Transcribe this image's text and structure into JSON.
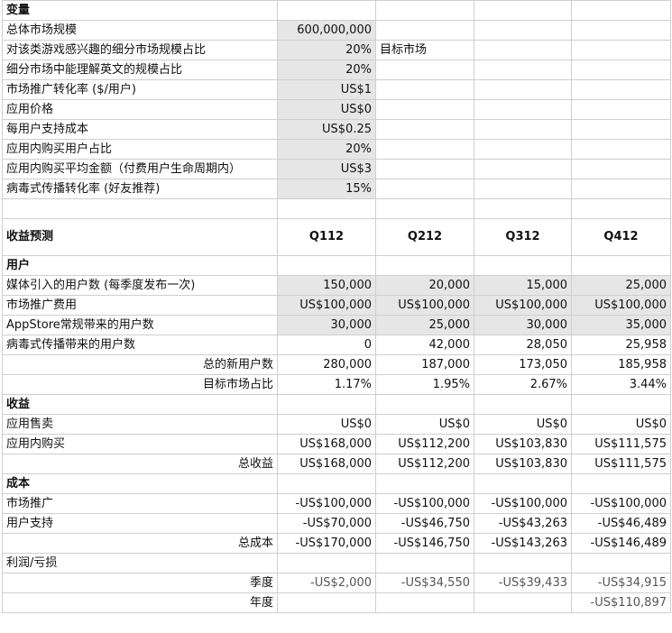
{
  "variables": {
    "title": "变量",
    "rows": [
      {
        "label": "总体市场规模",
        "value": "600,000,000",
        "note": ""
      },
      {
        "label": "对该类游戏感兴趣的细分市场规模占比",
        "value": "20%",
        "note": "目标市场"
      },
      {
        "label": "细分市场中能理解英文的规模占比",
        "value": "20%",
        "note": ""
      },
      {
        "label": "市场推广转化率 ($/用户)",
        "value": "US$1",
        "note": ""
      },
      {
        "label": "应用价格",
        "value": "US$0",
        "note": ""
      },
      {
        "label": "每用户支持成本",
        "value": "US$0.25",
        "note": ""
      },
      {
        "label": "应用内购买用户占比",
        "value": "20%",
        "note": ""
      },
      {
        "label": "应用内购买平均金额（付费用户生命周期内）",
        "value": "US$3",
        "note": ""
      },
      {
        "label": "病毒式传播转化率 (好友推荐)",
        "value": "15%",
        "note": ""
      }
    ]
  },
  "forecast": {
    "title": "收益预测",
    "quarters": [
      "Q112",
      "Q212",
      "Q312",
      "Q412"
    ],
    "users": {
      "heading": "用户",
      "rows": [
        {
          "label": "媒体引入的用户数 (每季度发布一次)",
          "values": [
            "150,000",
            "20,000",
            "15,000",
            "25,000"
          ]
        },
        {
          "label": "市场推广费用",
          "values": [
            "US$100,000",
            "US$100,000",
            "US$100,000",
            "US$100,000"
          ]
        },
        {
          "label": "AppStore常规带来的用户数",
          "values": [
            "30,000",
            "25,000",
            "30,000",
            "35,000"
          ]
        },
        {
          "label": "病毒式传播带来的用户数",
          "values": [
            "0",
            "42,000",
            "28,050",
            "25,958"
          ]
        }
      ],
      "total_label": "总的新用户数",
      "total_values": [
        "280,000",
        "187,000",
        "173,050",
        "185,958"
      ],
      "share_label": "目标市场占比",
      "share_values": [
        "1.17%",
        "1.95%",
        "2.67%",
        "3.44%"
      ]
    },
    "revenue": {
      "heading": "收益",
      "rows": [
        {
          "label": "应用售卖",
          "values": [
            "US$0",
            "US$0",
            "US$0",
            "US$0"
          ]
        },
        {
          "label": "应用内购买",
          "values": [
            "US$168,000",
            "US$112,200",
            "US$103,830",
            "US$111,575"
          ]
        }
      ],
      "total_label": "总收益",
      "total_values": [
        "US$168,000",
        "US$112,200",
        "US$103,830",
        "US$111,575"
      ]
    },
    "cost": {
      "heading": "成本",
      "rows": [
        {
          "label": "市场推广",
          "values": [
            "-US$100,000",
            "-US$100,000",
            "-US$100,000",
            "-US$100,000"
          ]
        },
        {
          "label": "用户支持",
          "values": [
            "-US$70,000",
            "-US$46,750",
            "-US$43,263",
            "-US$46,489"
          ]
        }
      ],
      "total_label": "总成本",
      "total_values": [
        "-US$170,000",
        "-US$146,750",
        "-US$143,263",
        "-US$146,489"
      ]
    },
    "profit": {
      "heading": "利润/亏损",
      "quarterly_label": "季度",
      "quarterly_values": [
        "-US$2,000",
        "-US$34,550",
        "-US$39,433",
        "-US$34,915"
      ],
      "annual_label": "年度",
      "annual_value": "-US$110,897"
    }
  },
  "colors": {
    "input_shade": "#e6e6e6",
    "gridline": "#cfcfcf",
    "text": "#111111"
  }
}
